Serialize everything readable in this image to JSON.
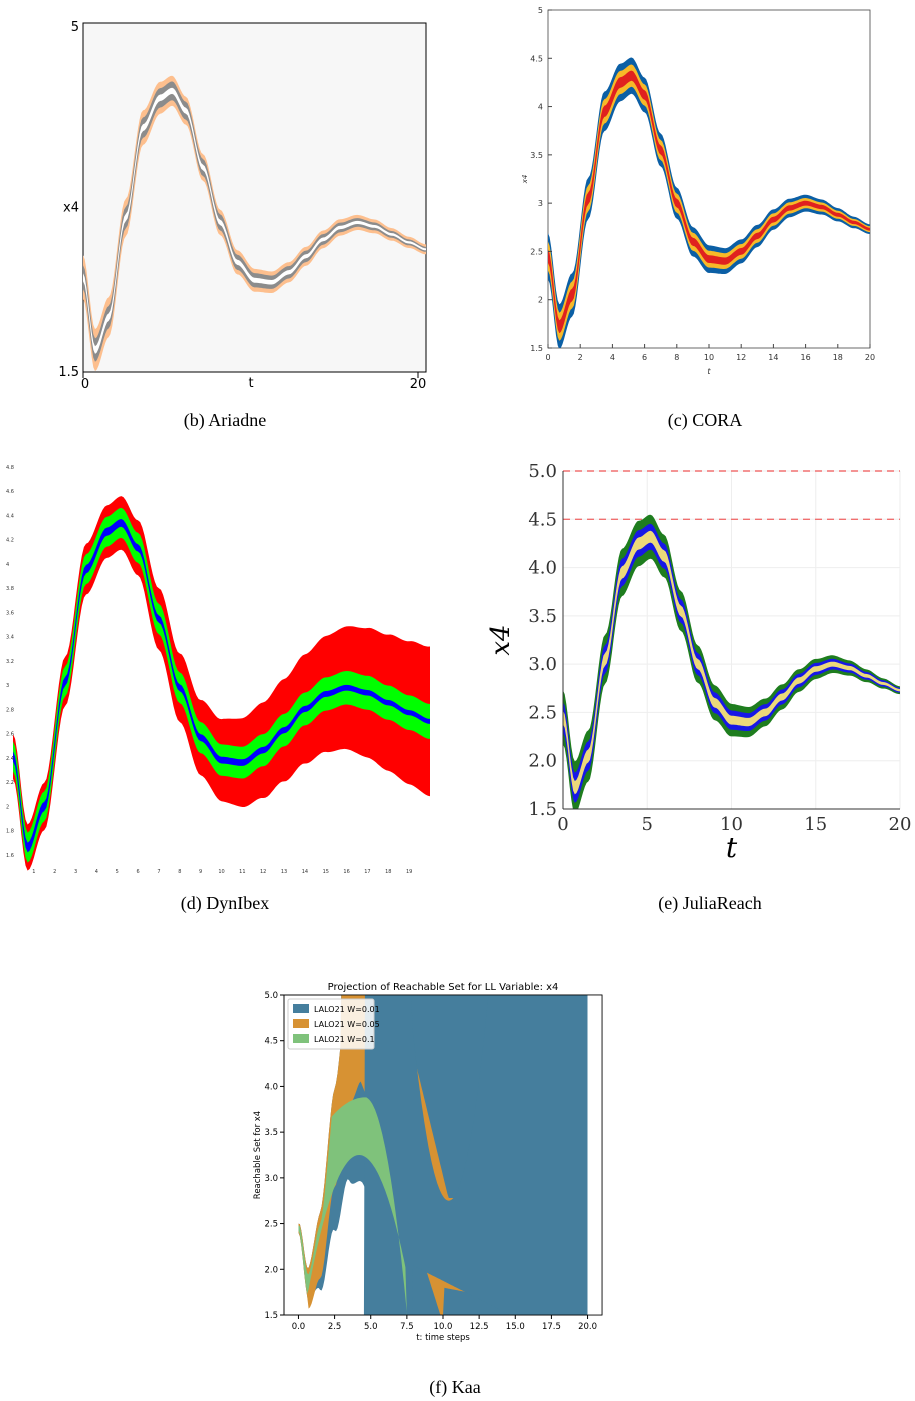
{
  "captions": {
    "b": "(b)  Ariadne",
    "c": "(c)  CORA",
    "d": "(d)  DynIbex",
    "e": "(e)  JuliaReach",
    "f": "(f)  Kaa"
  },
  "chart_data": [
    {
      "id": "ariadne",
      "type": "area",
      "xlabel": "t",
      "ylabel": "x4",
      "xlim": [
        0,
        20
      ],
      "ylim": [
        1.5,
        5
      ],
      "xticks": [
        "0",
        "20"
      ],
      "yticks": [
        "1.5",
        "5"
      ],
      "background": "#f7f7f7",
      "grid": false,
      "bands": [
        {
          "color": "#fdbf8e",
          "half_width": [
            0.22,
            0.14,
            0.05
          ]
        },
        {
          "color": "#8c8c8c",
          "half_width": [
            0.12,
            0.09,
            0.025
          ]
        },
        {
          "color": "#ffffff",
          "half_width": [
            0.04,
            0.03,
            0.01
          ]
        }
      ]
    },
    {
      "id": "cora",
      "type": "area",
      "xlabel": "t",
      "ylabel": "x4",
      "xlim": [
        0,
        20
      ],
      "ylim": [
        1.5,
        5
      ],
      "xticks": [
        "0",
        "2",
        "4",
        "6",
        "8",
        "10",
        "12",
        "14",
        "16",
        "18",
        "20"
      ],
      "yticks": [
        "1.5",
        "2",
        "2.5",
        "3",
        "3.5",
        "4",
        "4.5",
        "5"
      ],
      "grid": false,
      "bands": [
        {
          "color": "#0b5fa5",
          "half_width": [
            0.24,
            0.18,
            0.05
          ]
        },
        {
          "color": "#f7b928",
          "half_width": [
            0.15,
            0.11,
            0.03
          ]
        },
        {
          "color": "#e0211f",
          "half_width": [
            0.07,
            0.05,
            0.015
          ]
        }
      ]
    },
    {
      "id": "dynibex",
      "type": "area",
      "xlim": [
        0,
        20
      ],
      "ylim": [
        1.5,
        4.8
      ],
      "xticks": [
        "1",
        "2",
        "3",
        "4",
        "5",
        "6",
        "7",
        "8",
        "9",
        "10",
        "11",
        "12",
        "13",
        "14",
        "15",
        "16",
        "17",
        "18",
        "19"
      ],
      "yticks": [
        "4.8",
        "4.6",
        "4.4",
        "4.2",
        "4",
        "3.8",
        "3.6",
        "3.4",
        "3.2",
        "3",
        "2.8",
        "2.6",
        "2.4",
        "2.2",
        "2",
        "1.8",
        "1.6"
      ],
      "grid": false,
      "bands": [
        {
          "color": "#ff0000",
          "half_width": [
            0.18,
            0.22,
            0.6
          ]
        },
        {
          "color": "#00ff00",
          "half_width": [
            0.12,
            0.12,
            0.14
          ]
        },
        {
          "color": "#0000ff",
          "half_width": [
            0.04,
            0.03,
            0.02
          ]
        }
      ]
    },
    {
      "id": "juliareach",
      "type": "area",
      "xlabel": "t",
      "ylabel": "x4",
      "xlim": [
        0,
        20
      ],
      "ylim": [
        1.5,
        5.0
      ],
      "xticks": [
        "0",
        "5",
        "10",
        "15",
        "20"
      ],
      "yticks": [
        "1.5",
        "2.0",
        "2.5",
        "3.0",
        "3.5",
        "4.0",
        "4.5",
        "5.0"
      ],
      "grid": true,
      "hlines": [
        {
          "y": 4.5,
          "color": "#f07070",
          "style": "dashed"
        },
        {
          "y": 5.0,
          "color": "#f07070",
          "style": "dashed"
        }
      ],
      "bands": [
        {
          "color": "#1e7d1e",
          "half_width": [
            0.28,
            0.22,
            0.04
          ]
        },
        {
          "color": "#1717e6",
          "half_width": [
            0.16,
            0.13,
            0.025
          ]
        },
        {
          "color": "#ecd97a",
          "half_width": [
            0.07,
            0.06,
            0.012
          ]
        }
      ]
    },
    {
      "id": "kaa",
      "type": "area",
      "title": "Projection of Reachable Set for LL Variable: x4",
      "xlabel": "t: time steps",
      "ylabel": "Reachable Set for x4",
      "xlim": [
        0,
        20
      ],
      "ylim": [
        1.5,
        5.0
      ],
      "xticks": [
        "0.0",
        "2.5",
        "5.0",
        "7.5",
        "10.0",
        "12.5",
        "15.0",
        "17.5",
        "20.0"
      ],
      "yticks": [
        "1.5",
        "2.0",
        "2.5",
        "3.0",
        "3.5",
        "4.0",
        "4.5",
        "5.0"
      ],
      "legend_position": "top-left",
      "series": [
        {
          "name": "LALO21 W=0.01",
          "color": "#457e9d"
        },
        {
          "name": "LALO21 W=0.05",
          "color": "#d79233"
        },
        {
          "name": "LALO21 W=0.1",
          "color": "#7fc27b"
        }
      ]
    }
  ]
}
